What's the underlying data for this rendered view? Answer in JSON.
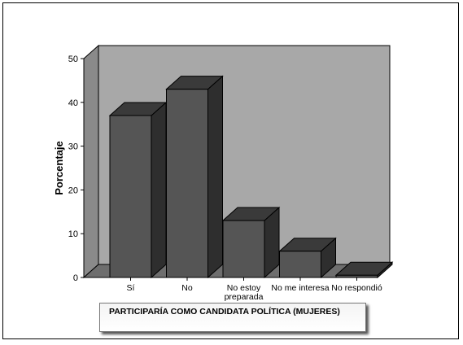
{
  "chart_data": {
    "type": "bar",
    "title": "",
    "xlabel": "PARTICIPARÍA COMO CANDIDATA POLÍTICA (MUJERES)",
    "ylabel": "Porcentaje",
    "categories": [
      [
        "Sí"
      ],
      [
        "No"
      ],
      [
        "No estoy",
        "preparada"
      ],
      [
        "No me interesa"
      ],
      [
        "No respondió"
      ]
    ],
    "values": [
      37,
      43,
      13,
      6,
      0.5
    ],
    "ylim": [
      0,
      50
    ],
    "yticks": [
      0,
      10,
      20,
      30,
      40,
      50
    ],
    "grid": false,
    "colors": {
      "bar_front": "#555555",
      "bar_side": "#2e2e2e",
      "bar_top": "#3a3a3a",
      "back_wall": "#a8a8a8",
      "side_wall": "#8a8a8a",
      "floor": "#6e6e6e"
    }
  }
}
